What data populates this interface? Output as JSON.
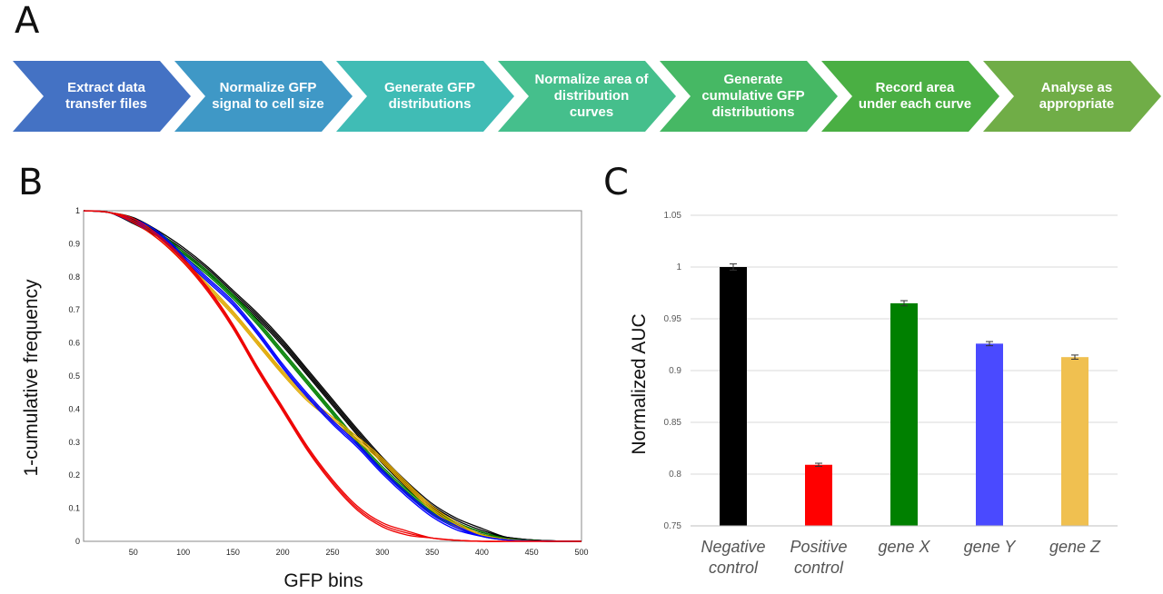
{
  "panels": {
    "a": "A",
    "b": "B",
    "c": "C"
  },
  "workflow": {
    "steps": [
      {
        "label": "Extract data transfer files",
        "color": "#4472c4"
      },
      {
        "label": "Normalize GFP signal to cell size",
        "color": "#3f98c6"
      },
      {
        "label": "Generate GFP distributions",
        "color": "#40bcb5"
      },
      {
        "label": "Normalize area of distribution curves",
        "color": "#45bf8c"
      },
      {
        "label": "Generate cumulative GFP distributions",
        "color": "#46b864"
      },
      {
        "label": "Record area under each curve",
        "color": "#4aaf43"
      },
      {
        "label": "Analyse as appropriate",
        "color": "#70ad47"
      }
    ]
  },
  "chart_data": [
    {
      "type": "line",
      "xlabel": "GFP bins",
      "ylabel": "1-cumulative frequency",
      "xlim": [
        0,
        500
      ],
      "ylim": [
        0,
        1
      ],
      "xticks": [
        "50",
        "100",
        "150",
        "200",
        "250",
        "300",
        "350",
        "400",
        "450",
        "500"
      ],
      "yticks": [
        "0",
        "0.1",
        "0.2",
        "0.3",
        "0.4",
        "0.5",
        "0.6",
        "0.7",
        "0.8",
        "0.9",
        "1"
      ],
      "grid": false,
      "series": [
        {
          "color": "#000000",
          "replicates": 4,
          "x": [
            0,
            25,
            50,
            75,
            100,
            125,
            150,
            175,
            200,
            225,
            250,
            275,
            300,
            325,
            350,
            375,
            400,
            425,
            450,
            475,
            500
          ],
          "y": [
            1.0,
            0.995,
            0.97,
            0.93,
            0.88,
            0.82,
            0.75,
            0.68,
            0.6,
            0.51,
            0.42,
            0.33,
            0.245,
            0.17,
            0.105,
            0.06,
            0.03,
            0.012,
            0.004,
            0.001,
            0.0
          ]
        },
        {
          "color": "#008000",
          "replicates": 3,
          "x": [
            0,
            25,
            50,
            75,
            100,
            125,
            150,
            175,
            200,
            225,
            250,
            275,
            300,
            325,
            350,
            375,
            400,
            425,
            450,
            475,
            500
          ],
          "y": [
            1.0,
            0.995,
            0.97,
            0.93,
            0.87,
            0.81,
            0.74,
            0.66,
            0.57,
            0.48,
            0.39,
            0.3,
            0.22,
            0.15,
            0.09,
            0.05,
            0.022,
            0.008,
            0.002,
            0.0,
            0.0
          ]
        },
        {
          "color": "#e0a800",
          "replicates": 3,
          "x": [
            0,
            25,
            50,
            75,
            100,
            125,
            150,
            175,
            200,
            225,
            250,
            275,
            300,
            325,
            350,
            375,
            400,
            425,
            450,
            475,
            500
          ],
          "y": [
            1.0,
            0.995,
            0.97,
            0.92,
            0.85,
            0.77,
            0.69,
            0.6,
            0.51,
            0.43,
            0.37,
            0.31,
            0.245,
            0.17,
            0.1,
            0.05,
            0.02,
            0.006,
            0.001,
            0.0,
            0.0
          ]
        },
        {
          "color": "#0000ff",
          "replicates": 3,
          "x": [
            0,
            25,
            50,
            75,
            100,
            125,
            150,
            175,
            200,
            225,
            250,
            275,
            300,
            325,
            350,
            375,
            400,
            425,
            450,
            475,
            500
          ],
          "y": [
            1.0,
            0.995,
            0.97,
            0.93,
            0.86,
            0.79,
            0.72,
            0.63,
            0.53,
            0.44,
            0.36,
            0.29,
            0.21,
            0.14,
            0.08,
            0.04,
            0.015,
            0.004,
            0.001,
            0.0,
            0.0
          ]
        },
        {
          "color": "#ee0000",
          "replicates": 3,
          "x": [
            0,
            25,
            50,
            75,
            100,
            125,
            150,
            175,
            200,
            225,
            250,
            275,
            300,
            325,
            350,
            375,
            400,
            425,
            450,
            475,
            500
          ],
          "y": [
            1.0,
            0.995,
            0.97,
            0.92,
            0.85,
            0.76,
            0.65,
            0.52,
            0.4,
            0.28,
            0.18,
            0.1,
            0.05,
            0.025,
            0.01,
            0.003,
            0.0,
            0.0,
            0.0,
            0.0,
            0.0
          ]
        }
      ]
    },
    {
      "type": "bar",
      "ylabel": "Normalized AUC",
      "ylim": [
        0.75,
        1.05
      ],
      "yticks": [
        "0.75",
        "0.8",
        "0.85",
        "0.9",
        "0.95",
        "1",
        "1.05"
      ],
      "grid": true,
      "categories": [
        "Negative control",
        "Positive control",
        "gene X",
        "gene Y",
        "gene Z"
      ],
      "values": [
        1.0,
        0.809,
        0.965,
        0.926,
        0.913
      ],
      "errors": [
        0.003,
        0.0015,
        0.0025,
        0.002,
        0.002
      ],
      "colors": [
        "#000000",
        "#ff0000",
        "#008000",
        "#4a4aff",
        "#f0c050"
      ]
    }
  ]
}
